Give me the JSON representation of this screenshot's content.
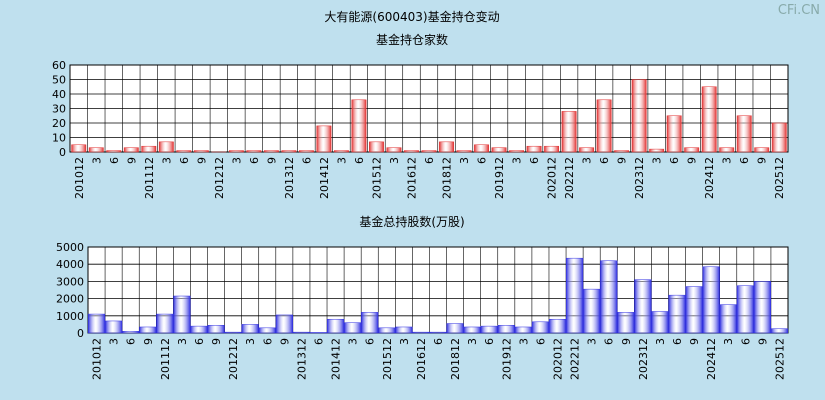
{
  "title": "大有能源(600403)基金持仓变动",
  "watermark": "CFi.CN",
  "chart_data": [
    {
      "type": "bar",
      "title": "基金持仓家数",
      "color": "#e03030",
      "grid": true,
      "ylim": [
        0,
        60
      ],
      "yticks": [
        0,
        10,
        20,
        30,
        40,
        50,
        60
      ],
      "categories": [
        "201012",
        "3",
        "6",
        "9",
        "201112",
        "3",
        "6",
        "9",
        "201212",
        "3",
        "6",
        "9",
        "201312",
        "6",
        "201412",
        "3",
        "6",
        "201512",
        "3",
        "201612",
        "6",
        "201812",
        "3",
        "6",
        "201912",
        "3",
        "6",
        "202012",
        "202212",
        "3",
        "6",
        "9",
        "202312",
        "3",
        "6",
        "9",
        "202412",
        "3",
        "6",
        "9",
        "202512"
      ],
      "values": [
        5,
        3,
        1,
        3,
        4,
        7,
        1,
        1,
        0,
        1,
        1,
        1,
        1,
        1,
        18,
        1,
        36,
        7,
        3,
        1,
        1,
        7,
        1,
        5,
        3,
        1,
        4,
        4,
        28,
        3,
        36,
        1,
        50,
        2,
        25,
        3,
        45,
        3,
        25,
        3,
        20
      ]
    },
    {
      "type": "bar",
      "title": "基金总持股数(万股)",
      "color": "#3030e0",
      "grid": true,
      "ylim": [
        0,
        5000
      ],
      "yticks": [
        0,
        1000,
        2000,
        3000,
        4000,
        5000
      ],
      "categories": [
        "201012",
        "3",
        "6",
        "9",
        "201112",
        "3",
        "6",
        "9",
        "201212",
        "3",
        "6",
        "9",
        "201312",
        "6",
        "201412",
        "3",
        "6",
        "201512",
        "3",
        "201612",
        "6",
        "201812",
        "3",
        "6",
        "201912",
        "3",
        "6",
        "202012",
        "202212",
        "3",
        "6",
        "9",
        "202312",
        "3",
        "6",
        "9",
        "202412",
        "3",
        "6",
        "9",
        "202512"
      ],
      "values": [
        1100,
        700,
        100,
        350,
        1100,
        2150,
        400,
        450,
        50,
        500,
        300,
        1050,
        50,
        30,
        800,
        600,
        1200,
        300,
        350,
        50,
        50,
        550,
        350,
        400,
        450,
        350,
        650,
        800,
        4350,
        2550,
        4200,
        1200,
        3100,
        1250,
        2200,
        2700,
        3850,
        1650,
        2750,
        3000,
        250
      ]
    }
  ]
}
